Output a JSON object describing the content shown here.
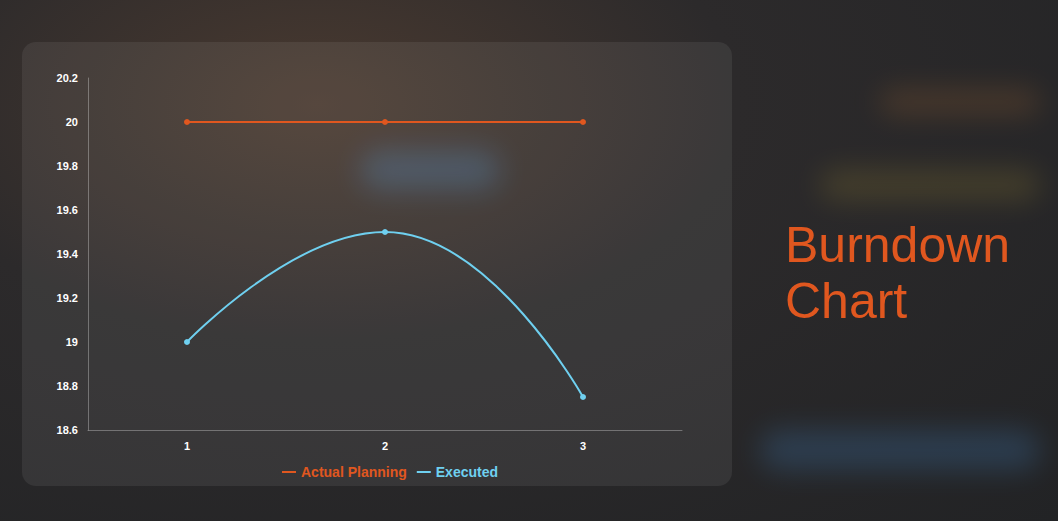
{
  "chart_data": {
    "type": "line",
    "title": "Burndown Chart",
    "categories": [
      "1",
      "2",
      "3"
    ],
    "series": [
      {
        "name": "Actual Planning",
        "color": "#e0571f",
        "values": [
          20,
          20,
          20
        ],
        "marker": "circle",
        "line_style": "solid"
      },
      {
        "name": "Executed",
        "color": "#6fd0f0",
        "values": [
          19,
          19.5,
          18.75
        ],
        "marker": "circle",
        "line_style": "smooth"
      }
    ],
    "ylim": [
      18.6,
      20.2
    ],
    "yticks": [
      18.6,
      18.8,
      19,
      19.2,
      19.4,
      19.6,
      19.8,
      20,
      20.2
    ],
    "grid": false,
    "legend": "bottom"
  }
}
